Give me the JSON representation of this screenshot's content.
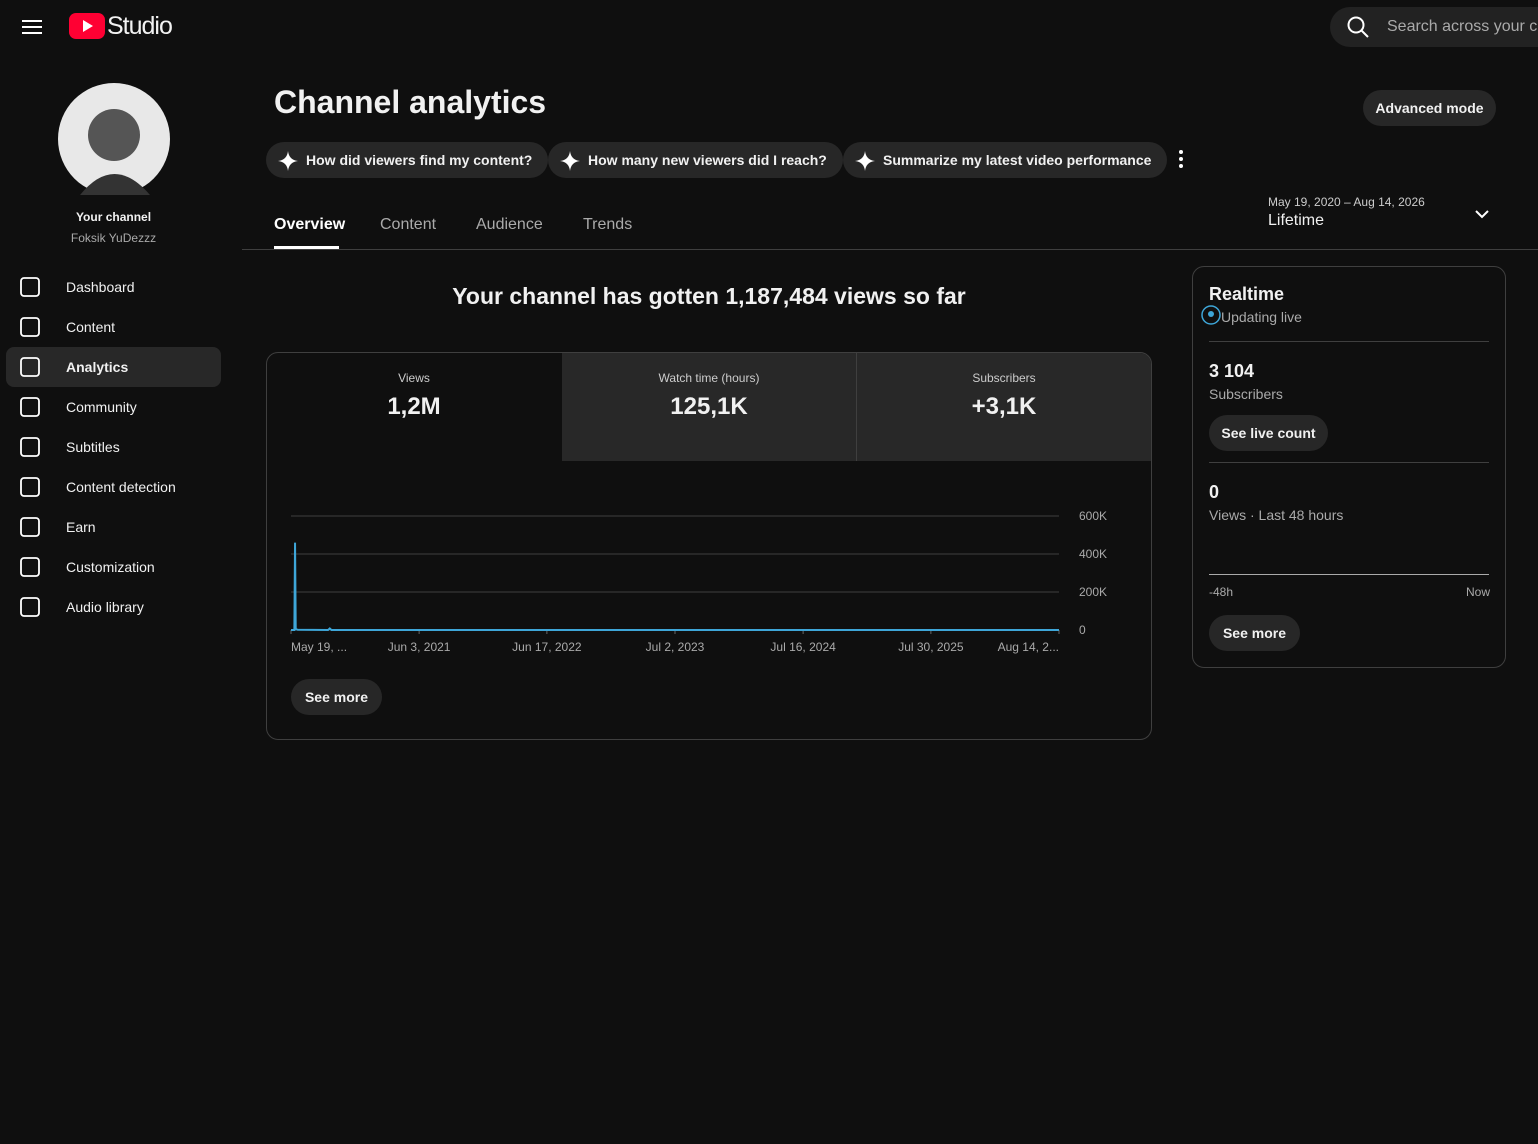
{
  "header": {
    "logo": "Studio",
    "search_placeholder": "Search across your c"
  },
  "sidebar": {
    "channel_label": "Your channel",
    "channel_name": "Foksik YuDezzz",
    "nav": [
      "Dashboard",
      "Content",
      "Analytics",
      "Community",
      "Subtitles",
      "Content detection",
      "Earn",
      "Customization",
      "Audio library"
    ],
    "active": 2
  },
  "page": {
    "title": "Channel analytics",
    "advanced_button": "Advanced mode",
    "chips": [
      "How did viewers find my content?",
      "How many new viewers did I reach?",
      "Summarize my latest video performance"
    ],
    "tabs": [
      "Overview",
      "Content",
      "Audience",
      "Trends"
    ],
    "active_tab": 0,
    "date_range": "May 19, 2020 – Aug 14, 2026",
    "date_preset": "Lifetime",
    "headline": "Your channel has gotten 1,187,484 views so far",
    "metrics": [
      {
        "label": "Views",
        "value": "1,2M"
      },
      {
        "label": "Watch time (hours)",
        "value": "125,1K"
      },
      {
        "label": "Subscribers",
        "value": "+3,1K"
      }
    ],
    "see_more": "See more"
  },
  "chart_data": {
    "type": "line",
    "color": "#3ea6d8",
    "x": [
      0,
      10,
      12,
      14,
      20,
      110,
      115,
      120,
      2278
    ],
    "values": [
      0,
      0,
      460000,
      5000,
      1000,
      0,
      8000,
      0,
      0
    ],
    "xlim": [
      0,
      2278
    ],
    "xticks": [
      {
        "value": 0,
        "label": "May 19, ..."
      },
      {
        "value": 380,
        "label": "Jun 3, 2021"
      },
      {
        "value": 759,
        "label": "Jun 17, 2022"
      },
      {
        "value": 1139,
        "label": "Jul 2, 2023"
      },
      {
        "value": 1519,
        "label": "Jul 16, 2024"
      },
      {
        "value": 1898,
        "label": "Jul 30, 2025"
      },
      {
        "value": 2278,
        "label": "Aug 14, 2..."
      }
    ],
    "ylim": [
      0,
      600000
    ],
    "yticks": [
      0,
      {
        "value": 200000,
        "label": "200K"
      },
      {
        "value": 400000,
        "label": "400K"
      },
      {
        "value": 600000,
        "label": "600K"
      }
    ],
    "grid": true
  },
  "realtime": {
    "title": "Realtime",
    "status": "Updating live",
    "subscribers": "3 104",
    "subscribers_label": "Subscribers",
    "live_button": "See live count",
    "views": "0",
    "views_label": "Views · Last 48 hours",
    "axis_start": "-48h",
    "axis_end": "Now",
    "see_more": "See more"
  }
}
